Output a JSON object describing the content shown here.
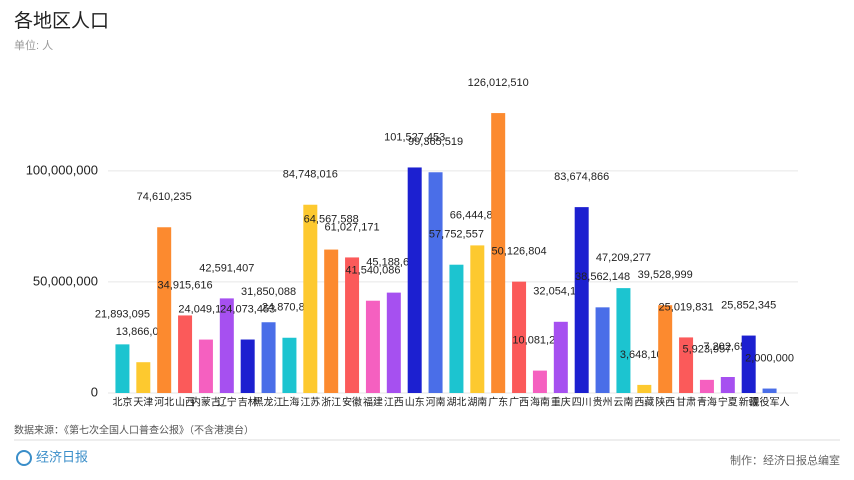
{
  "chart_data": {
    "type": "bar",
    "title": "各地区人口",
    "subtitle": "单位: 人",
    "source": "数据来源：《第七次全国人口普查公报》（不含港澳台）",
    "credit": "制作：经济日报总编室",
    "logo": "经济日报",
    "categories": [
      "北京",
      "天津",
      "河北",
      "山西",
      "内蒙古",
      "辽宁",
      "吉林",
      "黑龙江",
      "上海",
      "江苏",
      "浙江",
      "安徽",
      "福建",
      "江西",
      "山东",
      "河南",
      "湖北",
      "湖南",
      "广东",
      "广西",
      "海南",
      "重庆",
      "四川",
      "贵州",
      "云南",
      "西藏",
      "陕西",
      "甘肃",
      "青海",
      "宁夏",
      "新疆",
      "现役军人"
    ],
    "values": [
      21893095,
      13866009,
      74610235,
      34915616,
      24049155,
      42591407,
      24073453,
      31850088,
      24870895,
      84748016,
      64567588,
      61027171,
      41540086,
      45188635,
      101527453,
      99365519,
      57752557,
      66444864,
      126012510,
      50126804,
      10081232,
      32054159,
      83674866,
      38562148,
      47209277,
      3648100,
      39528999,
      25019831,
      5923957,
      7202654,
      25852345,
      2000000
    ],
    "value_labels": [
      "21,893,095",
      "13,866,009",
      "74,610,235",
      "34,915,616",
      "24,049,155",
      "42,591,407",
      "24,073,453",
      "31,850,088",
      "24,870,895",
      "84,748,016",
      "64,567,588",
      "61,027,171",
      "41,540,086",
      "45,188,635",
      "101,527,453",
      "99,365,519",
      "57,752,557",
      "66,444,864",
      "126,012,510",
      "50,126,804",
      "10,081,232",
      "32,054,159",
      "83,674,866",
      "38,562,148",
      "47,209,277",
      "3,648,100",
      "39,528,999",
      "25,019,831",
      "5,923,957",
      "7,202,654",
      "25,852,345",
      "2,000,000"
    ],
    "colors": [
      "#1cc4d0",
      "#fdc92f",
      "#fc8a2f",
      "#fb5a5a",
      "#f560c0",
      "#a650f0",
      "#1c20d0",
      "#4a6ee8"
    ],
    "ylim": [
      0,
      140000000
    ],
    "yticks": [
      0,
      {
        "value": 50000000,
        "label": "50,000,000"
      },
      {
        "value": 100000000,
        "label": "100,000,000"
      }
    ],
    "grid": true
  }
}
